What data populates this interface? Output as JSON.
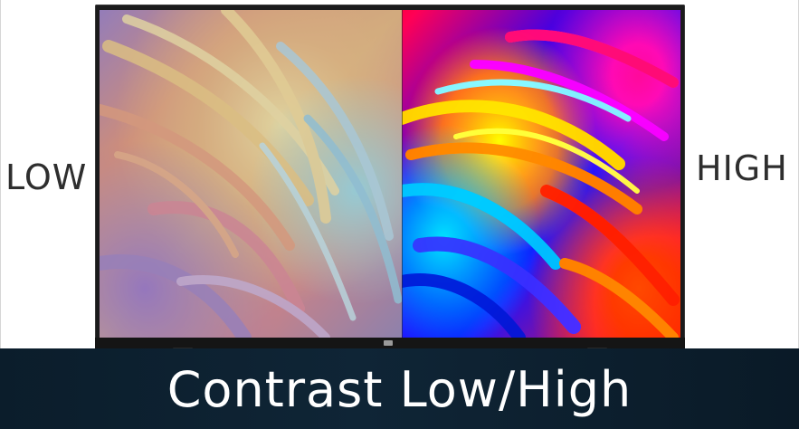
{
  "labels": {
    "left": "LOW",
    "right": "HIGH"
  },
  "banner": {
    "title": "Contrast Low/High"
  },
  "tv": {
    "brand_logo": "mi-logo",
    "screen_content": "abstract-colorful-paint-swirl-image"
  },
  "colors": {
    "banner_background": "#0f2536",
    "bezel": "#1b1b1c",
    "label_text": "#2e2e2e"
  }
}
